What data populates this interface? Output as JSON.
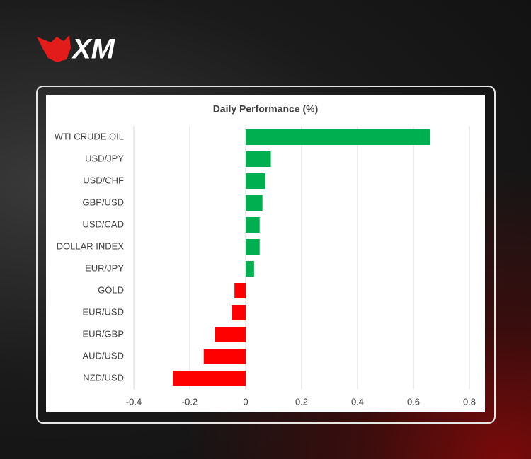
{
  "logo": {
    "text": "XM"
  },
  "chart_data": {
    "type": "hbar",
    "title": "Daily Performance (%)",
    "categories": [
      "WTI CRUDE OIL",
      "USD/JPY",
      "USD/CHF",
      "GBP/USD",
      "USD/CAD",
      "DOLLAR INDEX",
      "EUR/JPY",
      "GOLD",
      "EUR/USD",
      "EUR/GBP",
      "AUD/USD",
      "NZD/USD"
    ],
    "values": [
      0.66,
      0.09,
      0.07,
      0.06,
      0.05,
      0.05,
      0.03,
      -0.04,
      -0.05,
      -0.11,
      -0.15,
      -0.26
    ],
    "positive_color": "#00b050",
    "negative_color": "#ff0000",
    "xlim": [
      -0.4,
      0.8
    ],
    "xticks": [
      -0.4,
      -0.2,
      0,
      0.2,
      0.4,
      0.6,
      0.8
    ],
    "grid": true
  }
}
